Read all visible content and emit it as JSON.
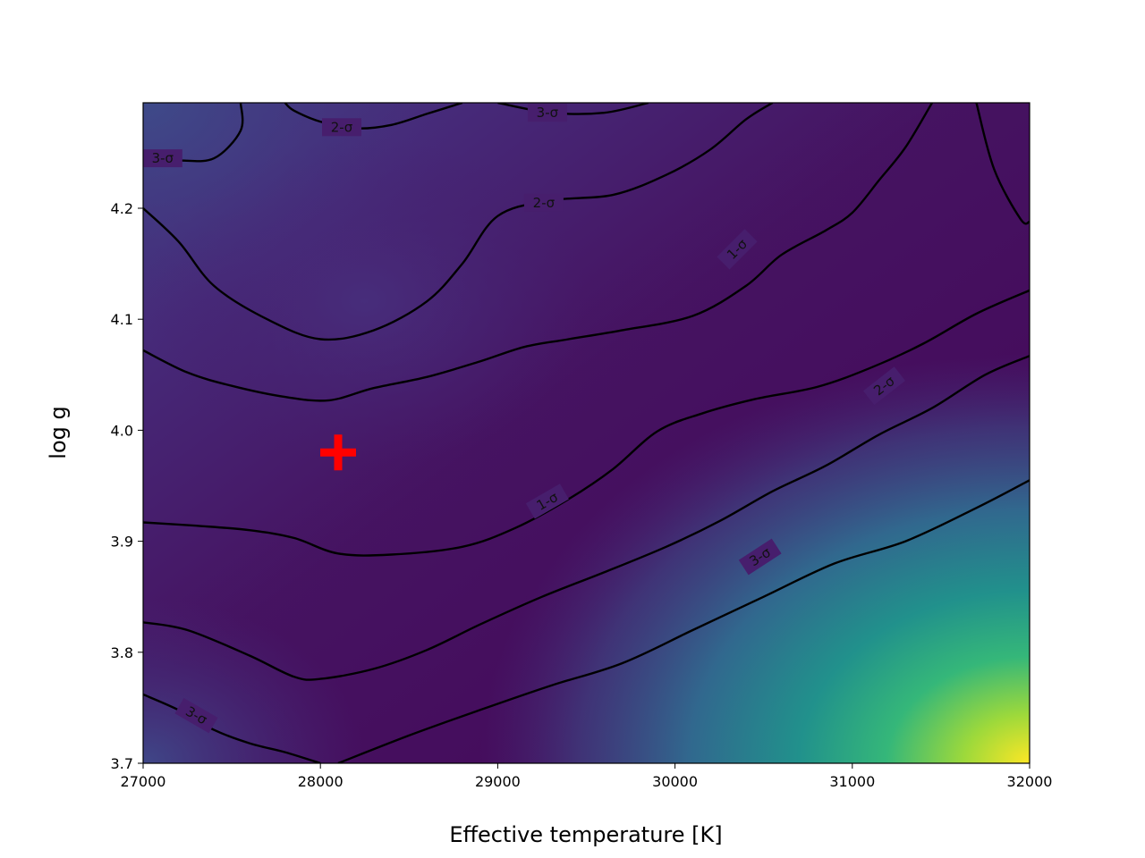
{
  "chart_data": {
    "type": "heatmap",
    "xlabel": "Effective temperature [K]",
    "ylabel": "log g",
    "xlim": [
      27000,
      32000
    ],
    "ylim": [
      3.7,
      4.295
    ],
    "x_ticks": [
      27000,
      28000,
      29000,
      30000,
      31000,
      32000
    ],
    "x_tick_labels": [
      "27000",
      "28000",
      "29000",
      "30000",
      "31000",
      "32000"
    ],
    "y_ticks": [
      3.7,
      3.8,
      3.9,
      4.0,
      4.1,
      4.2
    ],
    "y_tick_labels": [
      "3.7",
      "3.8",
      "3.9",
      "4.0",
      "4.1",
      "4.2"
    ],
    "colormap": "viridis",
    "colors": {
      "low": "#440154",
      "mid": "#3b528b",
      "teal": "#21918c",
      "green": "#5ec962",
      "high": "#fde725",
      "marker": "#ff0000",
      "contour": "#000000"
    },
    "best_fit": {
      "teff": 28100,
      "logg": 3.98,
      "marker": "plus"
    },
    "contours": [
      {
        "level": "1-σ",
        "curves": [
          {
            "points": [
              [
                27000,
                4.072
              ],
              [
                27250,
                4.052
              ],
              [
                27500,
                4.04
              ],
              [
                27800,
                4.03
              ],
              [
                28050,
                4.027
              ],
              [
                28300,
                4.038
              ],
              [
                28600,
                4.048
              ],
              [
                28900,
                4.062
              ],
              [
                29150,
                4.075
              ],
              [
                29400,
                4.082
              ],
              [
                29700,
                4.09
              ],
              [
                30100,
                4.103
              ],
              [
                30400,
                4.13
              ],
              [
                30600,
                4.158
              ],
              [
                30850,
                4.18
              ],
              [
                31000,
                4.196
              ],
              [
                31150,
                4.225
              ],
              [
                31300,
                4.255
              ],
              [
                31450,
                4.295
              ]
            ]
          },
          {
            "points": [
              [
                27000,
                3.917
              ],
              [
                27300,
                3.914
              ],
              [
                27600,
                3.91
              ],
              [
                27850,
                3.903
              ],
              [
                28100,
                3.889
              ],
              [
                28400,
                3.888
              ],
              [
                28800,
                3.895
              ],
              [
                29100,
                3.912
              ],
              [
                29400,
                3.938
              ],
              [
                29650,
                3.965
              ],
              [
                29900,
                3.999
              ],
              [
                30150,
                4.015
              ],
              [
                30450,
                4.028
              ],
              [
                30800,
                4.039
              ],
              [
                31100,
                4.056
              ],
              [
                31400,
                4.078
              ],
              [
                31700,
                4.105
              ],
              [
                32000,
                4.126
              ]
            ]
          }
        ],
        "labels": [
          {
            "text": "1-σ",
            "x": 30350,
            "logg": 4.163,
            "angle": -45
          },
          {
            "text": "1-σ",
            "x": 29280,
            "logg": 3.936,
            "angle": -30
          }
        ]
      },
      {
        "level": "2-σ",
        "curves": [
          {
            "points": [
              [
                27000,
                4.2
              ],
              [
                27200,
                4.17
              ],
              [
                27400,
                4.13
              ],
              [
                27700,
                4.1
              ],
              [
                28000,
                4.082
              ],
              [
                28300,
                4.09
              ],
              [
                28600,
                4.116
              ],
              [
                28800,
                4.15
              ],
              [
                29000,
                4.193
              ],
              [
                29300,
                4.207
              ],
              [
                29650,
                4.212
              ],
              [
                29950,
                4.23
              ],
              [
                30200,
                4.253
              ],
              [
                30400,
                4.28
              ],
              [
                30550,
                4.295
              ]
            ]
          },
          {
            "points": [
              [
                27000,
                3.827
              ],
              [
                27250,
                3.82
              ],
              [
                27600,
                3.797
              ],
              [
                27850,
                3.778
              ],
              [
                28000,
                3.776
              ],
              [
                28300,
                3.785
              ],
              [
                28600,
                3.802
              ],
              [
                28900,
                3.825
              ],
              [
                29250,
                3.85
              ],
              [
                29600,
                3.872
              ],
              [
                29950,
                3.895
              ],
              [
                30250,
                3.918
              ],
              [
                30550,
                3.945
              ],
              [
                30850,
                3.968
              ],
              [
                31150,
                3.996
              ],
              [
                31450,
                4.02
              ],
              [
                31750,
                4.05
              ],
              [
                32000,
                4.067
              ]
            ]
          },
          {
            "points": [
              [
                28800,
                4.295
              ],
              [
                28600,
                4.285
              ],
              [
                28400,
                4.275
              ],
              [
                28200,
                4.272
              ],
              [
                28000,
                4.278
              ],
              [
                27850,
                4.288
              ],
              [
                27800,
                4.295
              ]
            ]
          },
          {
            "points": [
              [
                31700,
                4.295
              ],
              [
                31800,
                4.235
              ],
              [
                31950,
                4.19
              ],
              [
                32000,
                4.188
              ]
            ]
          }
        ],
        "labels": [
          {
            "text": "2-σ",
            "x": 28120,
            "logg": 4.273,
            "angle": 0
          },
          {
            "text": "2-σ",
            "x": 29260,
            "logg": 4.205,
            "angle": 0
          },
          {
            "text": "2-σ",
            "x": 31180,
            "logg": 4.04,
            "angle": -38
          }
        ]
      },
      {
        "level": "3-σ",
        "curves": [
          {
            "points": [
              [
                27000,
                4.243
              ],
              [
                27200,
                4.243
              ],
              [
                27400,
                4.245
              ],
              [
                27550,
                4.27
              ],
              [
                27550,
                4.295
              ]
            ]
          },
          {
            "points": [
              [
                27000,
                3.762
              ],
              [
                27200,
                3.748
              ],
              [
                27400,
                3.73
              ],
              [
                27600,
                3.718
              ],
              [
                27800,
                3.71
              ],
              [
                28000,
                3.7
              ]
            ]
          },
          {
            "points": [
              [
                29000,
                4.295
              ],
              [
                29300,
                4.286
              ],
              [
                29600,
                4.286
              ],
              [
                29850,
                4.295
              ]
            ]
          },
          {
            "points": [
              [
                28100,
                3.7
              ],
              [
                28500,
                3.725
              ],
              [
                28900,
                3.748
              ],
              [
                29300,
                3.77
              ],
              [
                29700,
                3.79
              ],
              [
                30100,
                3.82
              ],
              [
                30500,
                3.85
              ],
              [
                30900,
                3.88
              ],
              [
                31300,
                3.9
              ],
              [
                31700,
                3.93
              ],
              [
                32000,
                3.955
              ]
            ]
          }
        ],
        "labels": [
          {
            "text": "3-σ",
            "x": 27110,
            "logg": 4.245,
            "angle": 0
          },
          {
            "text": "3-σ",
            "x": 27300,
            "logg": 3.743,
            "angle": 30
          },
          {
            "text": "3-σ",
            "x": 29280,
            "logg": 4.286,
            "angle": 0
          },
          {
            "text": "3-σ",
            "x": 30480,
            "logg": 3.886,
            "angle": -33
          }
        ]
      }
    ]
  }
}
